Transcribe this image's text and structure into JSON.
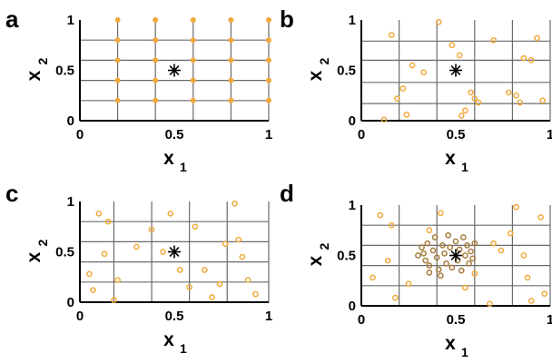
{
  "colors": {
    "point": "#f2a93b",
    "point_dark": "#a67c3a",
    "grid": "#6b6b6b",
    "target": "#000000"
  },
  "chart_data": [
    {
      "panel": "a",
      "type": "scatter",
      "xlabel": "x",
      "xlabel_sub": "1",
      "ylabel": "x",
      "ylabel_sub": "2",
      "xlim": [
        0,
        1
      ],
      "ylim": [
        0,
        1
      ],
      "xticks": [
        0,
        0.5,
        1
      ],
      "yticks": [
        0,
        0.5,
        1
      ],
      "xtick_labels": [
        "0",
        "0.5",
        "1"
      ],
      "ytick_labels": [
        "0",
        "0.5",
        "1"
      ],
      "grid_x": [
        0.2,
        0.4,
        0.6,
        0.8,
        1.0
      ],
      "grid_y": [
        0.2,
        0.4,
        0.6,
        0.8
      ],
      "target": {
        "x": 0.5,
        "y": 0.5
      },
      "series": [
        {
          "style": "grid-dots",
          "points": [
            [
              0.2,
              0.2
            ],
            [
              0.4,
              0.2
            ],
            [
              0.6,
              0.2
            ],
            [
              0.8,
              0.2
            ],
            [
              1.0,
              0.2
            ],
            [
              0.2,
              0.4
            ],
            [
              0.4,
              0.4
            ],
            [
              0.6,
              0.4
            ],
            [
              0.8,
              0.4
            ],
            [
              1.0,
              0.4
            ],
            [
              0.2,
              0.6
            ],
            [
              0.4,
              0.6
            ],
            [
              0.6,
              0.6
            ],
            [
              0.8,
              0.6
            ],
            [
              1.0,
              0.6
            ],
            [
              0.2,
              0.8
            ],
            [
              0.4,
              0.8
            ],
            [
              0.6,
              0.8
            ],
            [
              0.8,
              0.8
            ],
            [
              1.0,
              0.8
            ],
            [
              0.2,
              1.0
            ],
            [
              0.4,
              1.0
            ],
            [
              0.6,
              1.0
            ],
            [
              0.8,
              1.0
            ],
            [
              1.0,
              1.0
            ]
          ]
        }
      ]
    },
    {
      "panel": "b",
      "type": "scatter",
      "xlabel": "x",
      "xlabel_sub": "1",
      "ylabel": "x",
      "ylabel_sub": "2",
      "xlim": [
        0,
        1
      ],
      "ylim": [
        0,
        1
      ],
      "xticks": [
        0,
        0.5,
        1
      ],
      "yticks": [
        0,
        0.5,
        1
      ],
      "xtick_labels": [
        "0",
        "0.5",
        "1"
      ],
      "ytick_labels": [
        "0",
        "0.5",
        "1"
      ],
      "grid_x": [
        0.2,
        0.4,
        0.6,
        0.8,
        1.0
      ],
      "grid_y": [
        0.17,
        0.38,
        0.6,
        0.79
      ],
      "target": {
        "x": 0.5,
        "y": 0.5
      },
      "series": [
        {
          "style": "circles",
          "points": [
            [
              0.12,
              0.01
            ],
            [
              0.16,
              0.85
            ],
            [
              0.19,
              0.22
            ],
            [
              0.22,
              0.32
            ],
            [
              0.24,
              0.06
            ],
            [
              0.27,
              0.55
            ],
            [
              0.33,
              0.48
            ],
            [
              0.41,
              0.98
            ],
            [
              0.48,
              0.75
            ],
            [
              0.52,
              0.65
            ],
            [
              0.53,
              0.05
            ],
            [
              0.55,
              0.1
            ],
            [
              0.58,
              0.28
            ],
            [
              0.6,
              0.22
            ],
            [
              0.62,
              0.18
            ],
            [
              0.7,
              0.8
            ],
            [
              0.78,
              0.28
            ],
            [
              0.82,
              0.25
            ],
            [
              0.84,
              0.18
            ],
            [
              0.86,
              0.62
            ],
            [
              0.9,
              0.6
            ],
            [
              0.93,
              0.82
            ],
            [
              0.96,
              0.2
            ]
          ]
        }
      ]
    },
    {
      "panel": "c",
      "type": "scatter",
      "xlabel": "x",
      "xlabel_sub": "1",
      "ylabel": "x",
      "ylabel_sub": "2",
      "xlim": [
        0,
        1
      ],
      "ylim": [
        0,
        1
      ],
      "xticks": [
        0,
        0.5,
        1
      ],
      "yticks": [
        0,
        0.5,
        1
      ],
      "xtick_labels": [
        "0",
        "0.5",
        "1"
      ],
      "ytick_labels": [
        "0",
        "0.5",
        "1"
      ],
      "grid_x": [
        0.18,
        0.38,
        0.58,
        0.78,
        1.0
      ],
      "grid_y": [
        0.2,
        0.4,
        0.6,
        0.8
      ],
      "target": {
        "x": 0.5,
        "y": 0.5
      },
      "series": [
        {
          "style": "circles",
          "points": [
            [
              0.05,
              0.28
            ],
            [
              0.07,
              0.12
            ],
            [
              0.1,
              0.88
            ],
            [
              0.13,
              0.48
            ],
            [
              0.15,
              0.8
            ],
            [
              0.18,
              0.02
            ],
            [
              0.2,
              0.22
            ],
            [
              0.3,
              0.55
            ],
            [
              0.38,
              0.72
            ],
            [
              0.44,
              0.5
            ],
            [
              0.48,
              0.88
            ],
            [
              0.53,
              0.32
            ],
            [
              0.58,
              0.15
            ],
            [
              0.61,
              0.75
            ],
            [
              0.66,
              0.32
            ],
            [
              0.7,
              0.05
            ],
            [
              0.74,
              0.18
            ],
            [
              0.77,
              0.58
            ],
            [
              0.82,
              0.98
            ],
            [
              0.84,
              0.62
            ],
            [
              0.86,
              0.45
            ],
            [
              0.89,
              0.22
            ],
            [
              0.93,
              0.08
            ]
          ]
        }
      ]
    },
    {
      "panel": "d",
      "type": "scatter",
      "xlabel": "x",
      "xlabel_sub": "1",
      "ylabel": "x",
      "ylabel_sub": "2",
      "xlim": [
        0,
        1
      ],
      "ylim": [
        0,
        1
      ],
      "xticks": [
        0,
        0.5,
        1
      ],
      "yticks": [
        0,
        0.5,
        1
      ],
      "xtick_labels": [
        "0",
        "0.5",
        "1"
      ],
      "ytick_labels": [
        "0",
        "0.5",
        "1"
      ],
      "grid_x": [
        0.2,
        0.4,
        0.6,
        0.8,
        1.0
      ],
      "grid_y": [
        0.2,
        0.4,
        0.6,
        0.8
      ],
      "target": {
        "x": 0.5,
        "y": 0.5
      },
      "series": [
        {
          "style": "circles",
          "points": [
            [
              0.06,
              0.28
            ],
            [
              0.1,
              0.9
            ],
            [
              0.14,
              0.45
            ],
            [
              0.16,
              0.8
            ],
            [
              0.18,
              0.08
            ],
            [
              0.25,
              0.22
            ],
            [
              0.36,
              0.75
            ],
            [
              0.42,
              0.92
            ],
            [
              0.55,
              0.18
            ],
            [
              0.6,
              0.32
            ],
            [
              0.68,
              0.02
            ],
            [
              0.7,
              0.62
            ],
            [
              0.74,
              0.55
            ],
            [
              0.79,
              0.72
            ],
            [
              0.82,
              0.98
            ],
            [
              0.86,
              0.5
            ],
            [
              0.88,
              0.28
            ],
            [
              0.9,
              0.05
            ],
            [
              0.95,
              0.88
            ],
            [
              0.97,
              0.12
            ]
          ]
        },
        {
          "style": "circles-dark",
          "points": [
            [
              0.3,
              0.5
            ],
            [
              0.32,
              0.58
            ],
            [
              0.34,
              0.45
            ],
            [
              0.35,
              0.62
            ],
            [
              0.36,
              0.4
            ],
            [
              0.38,
              0.55
            ],
            [
              0.39,
              0.68
            ],
            [
              0.4,
              0.48
            ],
            [
              0.41,
              0.36
            ],
            [
              0.43,
              0.6
            ],
            [
              0.44,
              0.52
            ],
            [
              0.45,
              0.42
            ],
            [
              0.46,
              0.7
            ],
            [
              0.47,
              0.58
            ],
            [
              0.48,
              0.38
            ],
            [
              0.5,
              0.64
            ],
            [
              0.51,
              0.45
            ],
            [
              0.52,
              0.56
            ],
            [
              0.53,
              0.35
            ],
            [
              0.54,
              0.68
            ],
            [
              0.55,
              0.5
            ],
            [
              0.56,
              0.6
            ],
            [
              0.57,
              0.42
            ],
            [
              0.58,
              0.54
            ],
            [
              0.59,
              0.47
            ],
            [
              0.42,
              0.3
            ],
            [
              0.36,
              0.33
            ],
            [
              0.6,
              0.62
            ],
            [
              0.33,
              0.52
            ]
          ]
        }
      ]
    }
  ]
}
